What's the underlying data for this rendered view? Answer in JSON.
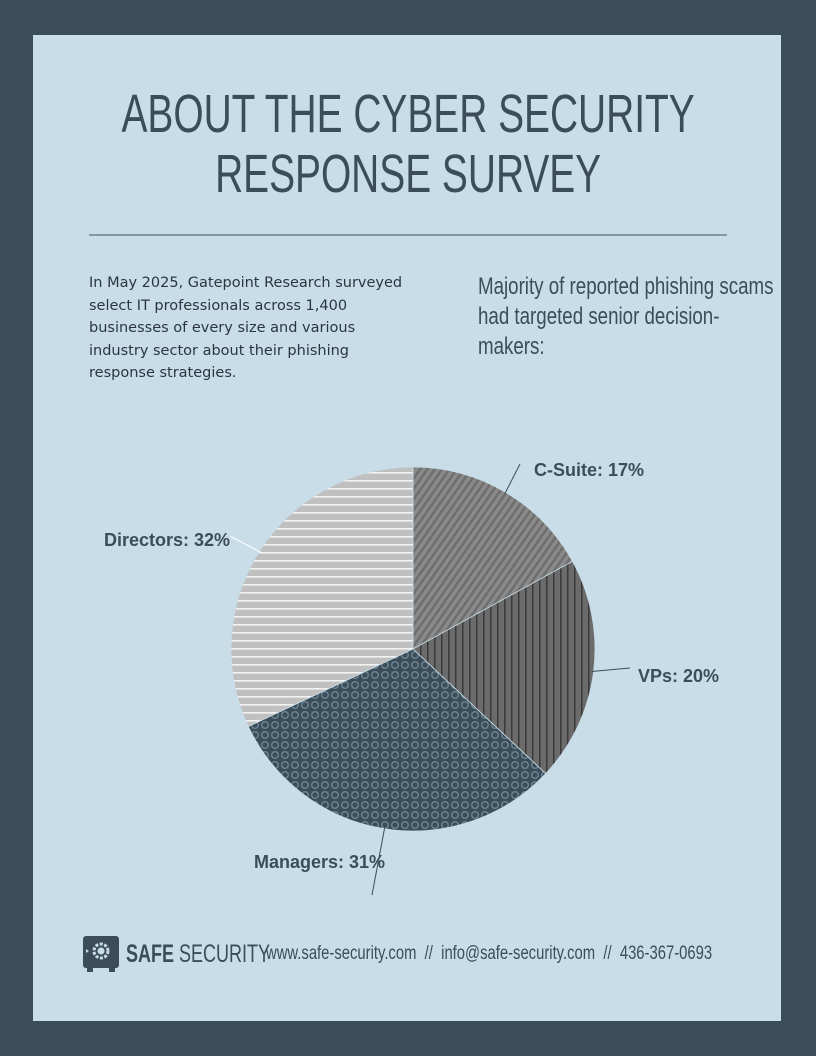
{
  "header": {
    "title_line1": "ABOUT THE CYBER SECURITY",
    "title_line2": "RESPONSE SURVEY"
  },
  "intro": "In May 2025, Gatepoint Research surveyed select IT professionals across 1,400 businesses of every size and various industry sector about their phishing response strategies.",
  "lead": "Majority of reported phishing scams had targeted senior decision-makers:",
  "chart_data": {
    "type": "pie",
    "categories": [
      "C-Suite",
      "VPs",
      "Managers",
      "Directors"
    ],
    "values": [
      17,
      20,
      31,
      32
    ],
    "labels": [
      "C-Suite: 17%",
      "VPs: 20%",
      "Managers: 31%",
      "Directors: 32%"
    ],
    "legend": "none",
    "colors": [
      "#8a8a8a",
      "#6b6b6b",
      "#3c4d5a",
      "#c4c4c4"
    ]
  },
  "footer": {
    "brand_bold": "SAFE",
    "brand_light": "SECURITY",
    "website": "www.safe-security.com",
    "sep": "//",
    "email": "info@safe-security.com",
    "phone": "436-367-0693"
  },
  "colors": {
    "frame": "#3c4d5a",
    "card": "#c8dde8",
    "text": "#3c4d5a"
  }
}
